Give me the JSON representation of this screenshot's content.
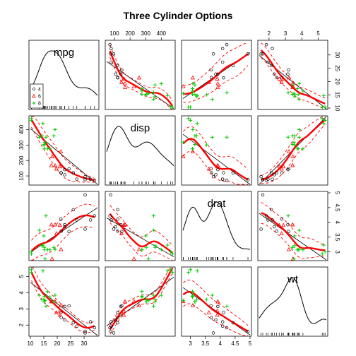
{
  "chart_data": {
    "type": "scatter-matrix",
    "title": "Three Cylinder Options",
    "variables": [
      {
        "name": "mpg",
        "range": [
          10,
          35
        ],
        "ticks": [
          10,
          15,
          20,
          25,
          30
        ]
      },
      {
        "name": "disp",
        "range": [
          50,
          480
        ],
        "ticks": [
          100,
          200,
          300,
          400
        ]
      },
      {
        "name": "drat",
        "range": [
          2.75,
          5.0
        ],
        "ticks": [
          3.0,
          3.5,
          4.0,
          4.5,
          5.0
        ]
      },
      {
        "name": "wt",
        "range": [
          1.4,
          5.5
        ],
        "ticks": [
          2,
          3,
          4,
          5
        ]
      }
    ],
    "legend": {
      "placement": "bottom-left",
      "entries": [
        {
          "label": "4",
          "symbol": "circle",
          "color": "#000000"
        },
        {
          "label": "6",
          "symbol": "triangle",
          "color": "#ff0000"
        },
        {
          "label": "8",
          "symbol": "plus",
          "color": "#00cd00"
        }
      ]
    },
    "colors": {
      "group4": "#000000",
      "group6": "#ff0000",
      "group8": "#00cd00",
      "fit": "#ff0000"
    },
    "groups": [
      {
        "name": "4",
        "symbol": "circle",
        "color": "#000000",
        "points": [
          {
            "mpg": 22.8,
            "disp": 108.0,
            "drat": 3.85,
            "wt": 2.32
          },
          {
            "mpg": 24.4,
            "disp": 146.7,
            "drat": 3.69,
            "wt": 3.19
          },
          {
            "mpg": 22.8,
            "disp": 140.8,
            "drat": 3.92,
            "wt": 3.15
          },
          {
            "mpg": 32.4,
            "disp": 78.7,
            "drat": 4.08,
            "wt": 2.2
          },
          {
            "mpg": 30.4,
            "disp": 75.7,
            "drat": 4.93,
            "wt": 1.615
          },
          {
            "mpg": 33.9,
            "disp": 71.1,
            "drat": 4.22,
            "wt": 1.835
          },
          {
            "mpg": 21.5,
            "disp": 120.1,
            "drat": 3.7,
            "wt": 2.465
          },
          {
            "mpg": 27.3,
            "disp": 79.0,
            "drat": 4.08,
            "wt": 1.935
          },
          {
            "mpg": 26.0,
            "disp": 120.3,
            "drat": 4.43,
            "wt": 2.14
          },
          {
            "mpg": 30.4,
            "disp": 95.1,
            "drat": 3.77,
            "wt": 1.513
          },
          {
            "mpg": 21.4,
            "disp": 121.0,
            "drat": 4.11,
            "wt": 2.78
          }
        ]
      },
      {
        "name": "6",
        "symbol": "triangle",
        "color": "#ff0000",
        "points": [
          {
            "mpg": 21.0,
            "disp": 160.0,
            "drat": 3.9,
            "wt": 2.62
          },
          {
            "mpg": 21.0,
            "disp": 160.0,
            "drat": 3.9,
            "wt": 2.875
          },
          {
            "mpg": 21.4,
            "disp": 258.0,
            "drat": 3.08,
            "wt": 3.215
          },
          {
            "mpg": 18.1,
            "disp": 225.0,
            "drat": 2.76,
            "wt": 3.46
          },
          {
            "mpg": 19.2,
            "disp": 167.6,
            "drat": 3.92,
            "wt": 3.44
          },
          {
            "mpg": 17.8,
            "disp": 167.6,
            "drat": 3.92,
            "wt": 3.44
          },
          {
            "mpg": 19.7,
            "disp": 145.0,
            "drat": 3.62,
            "wt": 2.77
          }
        ]
      },
      {
        "name": "8",
        "symbol": "plus",
        "color": "#00cd00",
        "points": [
          {
            "mpg": 18.7,
            "disp": 360.0,
            "drat": 3.15,
            "wt": 3.44
          },
          {
            "mpg": 14.3,
            "disp": 360.0,
            "drat": 3.21,
            "wt": 3.57
          },
          {
            "mpg": 16.4,
            "disp": 275.8,
            "drat": 3.07,
            "wt": 4.07
          },
          {
            "mpg": 17.3,
            "disp": 275.8,
            "drat": 3.07,
            "wt": 3.73
          },
          {
            "mpg": 15.2,
            "disp": 275.8,
            "drat": 3.07,
            "wt": 3.78
          },
          {
            "mpg": 10.4,
            "disp": 472.0,
            "drat": 2.93,
            "wt": 5.25
          },
          {
            "mpg": 10.4,
            "disp": 460.0,
            "drat": 3.0,
            "wt": 5.424
          },
          {
            "mpg": 14.7,
            "disp": 440.0,
            "drat": 3.23,
            "wt": 5.345
          },
          {
            "mpg": 15.5,
            "disp": 318.0,
            "drat": 2.76,
            "wt": 3.52
          },
          {
            "mpg": 15.2,
            "disp": 304.0,
            "drat": 3.15,
            "wt": 3.435
          },
          {
            "mpg": 13.3,
            "disp": 350.0,
            "drat": 3.73,
            "wt": 3.84
          },
          {
            "mpg": 19.2,
            "disp": 400.0,
            "drat": 3.08,
            "wt": 3.845
          },
          {
            "mpg": 15.8,
            "disp": 351.0,
            "drat": 4.22,
            "wt": 3.17
          },
          {
            "mpg": 15.0,
            "disp": 301.0,
            "drat": 3.54,
            "wt": 3.57
          }
        ]
      }
    ]
  }
}
